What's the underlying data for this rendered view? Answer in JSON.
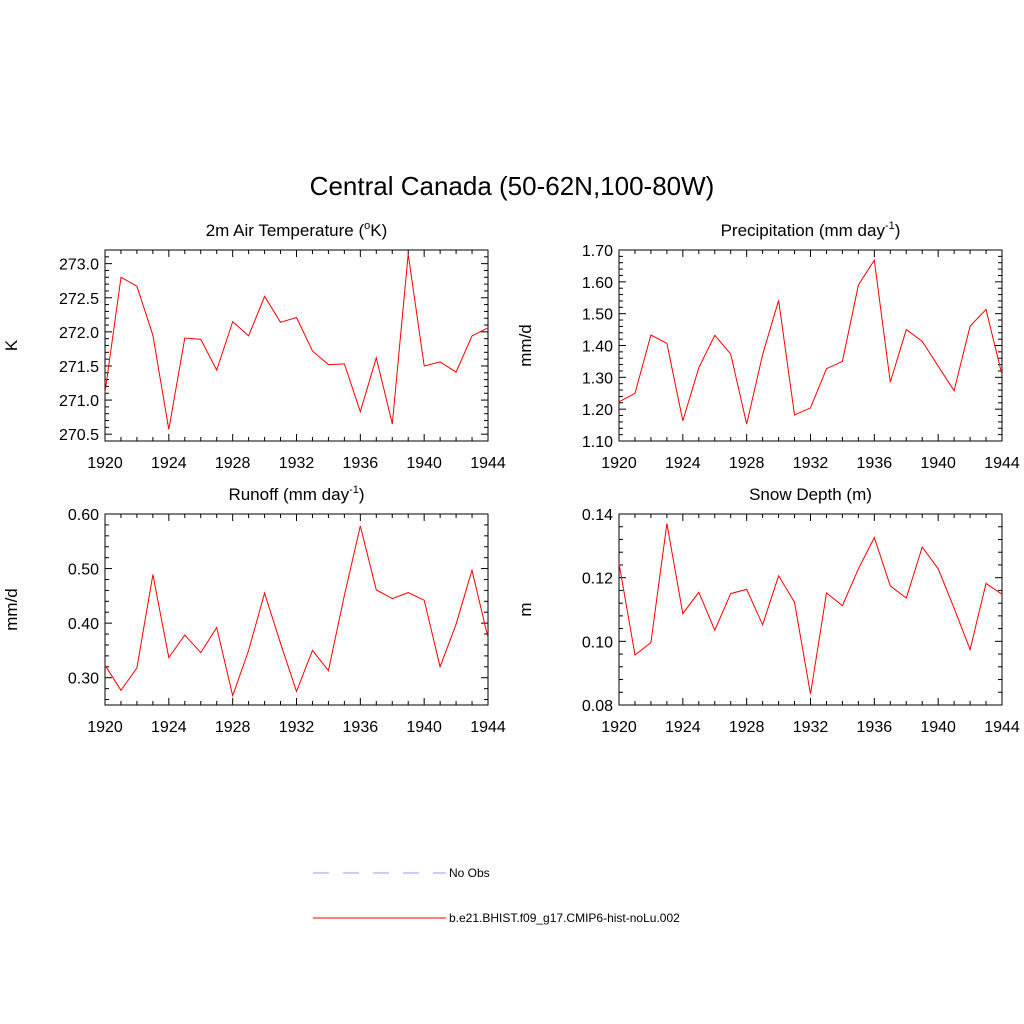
{
  "title": "Central Canada (50-62N,100-80W)",
  "colors": {
    "model": "#ff0000",
    "obs": "#9999ff",
    "frame": "#000000"
  },
  "legend": {
    "items": [
      {
        "label": "No Obs",
        "style": "dashed",
        "color": "#9999ff"
      },
      {
        "label": "b.e21.BHIST.f09_g17.CMIP6-hist-noLu.002",
        "style": "solid",
        "color": "#ff0000"
      }
    ]
  },
  "chart_data": [
    {
      "type": "line",
      "title": {
        "pre": "2m Air Temperature (",
        "sup": "o",
        "post": "K)"
      },
      "ylabel": "K",
      "xlim": [
        1920,
        1944
      ],
      "ylim": [
        270.4,
        273.2
      ],
      "xticks": [
        1920,
        1924,
        1928,
        1932,
        1936,
        1940,
        1944
      ],
      "yticks": [
        270.5,
        271.0,
        271.5,
        272.0,
        272.5,
        273.0
      ],
      "ytick_labels": [
        "270.5",
        "271.0",
        "271.5",
        "272.0",
        "272.5",
        "273.0"
      ],
      "x": [
        1920,
        1921,
        1922,
        1923,
        1924,
        1925,
        1926,
        1927,
        1928,
        1929,
        1930,
        1931,
        1932,
        1933,
        1934,
        1935,
        1936,
        1937,
        1938,
        1939,
        1940,
        1941,
        1942,
        1943,
        1944
      ],
      "series": [
        {
          "values": [
            271.11,
            272.8,
            272.67,
            271.95,
            270.57,
            271.91,
            271.89,
            271.44,
            272.15,
            271.94,
            272.52,
            272.14,
            272.21,
            271.72,
            271.52,
            271.53,
            270.83,
            271.62,
            270.65,
            273.14,
            271.5,
            271.56,
            271.41,
            271.94,
            272.06
          ]
        }
      ]
    },
    {
      "type": "line",
      "title": {
        "pre": "Precipitation (mm day",
        "sup": "-1",
        "post": ")"
      },
      "ylabel": "mm/d",
      "xlim": [
        1920,
        1944
      ],
      "ylim": [
        1.1,
        1.7
      ],
      "xticks": [
        1920,
        1924,
        1928,
        1932,
        1936,
        1940,
        1944
      ],
      "yticks": [
        1.1,
        1.2,
        1.3,
        1.4,
        1.5,
        1.6,
        1.7
      ],
      "ytick_labels": [
        "1.10",
        "1.20",
        "1.30",
        "1.40",
        "1.50",
        "1.60",
        "1.70"
      ],
      "x": [
        1920,
        1921,
        1922,
        1923,
        1924,
        1925,
        1926,
        1927,
        1928,
        1929,
        1930,
        1931,
        1932,
        1933,
        1934,
        1935,
        1936,
        1937,
        1938,
        1939,
        1940,
        1941,
        1942,
        1943,
        1944
      ],
      "series": [
        {
          "values": [
            1.223,
            1.25,
            1.433,
            1.407,
            1.163,
            1.33,
            1.432,
            1.373,
            1.153,
            1.371,
            1.542,
            1.182,
            1.204,
            1.327,
            1.35,
            1.59,
            1.668,
            1.285,
            1.45,
            1.413,
            1.335,
            1.258,
            1.461,
            1.513,
            1.308
          ]
        }
      ]
    },
    {
      "type": "line",
      "title": {
        "pre": "Runoff (mm day",
        "sup": "-1",
        "post": ")"
      },
      "ylabel": "mm/d",
      "xlim": [
        1920,
        1944
      ],
      "ylim": [
        0.25,
        0.6
      ],
      "xticks": [
        1920,
        1924,
        1928,
        1932,
        1936,
        1940,
        1944
      ],
      "yticks": [
        0.3,
        0.4,
        0.5,
        0.6
      ],
      "ytick_labels": [
        "0.30",
        "0.40",
        "0.50",
        "0.60"
      ],
      "x": [
        1920,
        1921,
        1922,
        1923,
        1924,
        1925,
        1926,
        1927,
        1928,
        1929,
        1930,
        1931,
        1932,
        1933,
        1934,
        1935,
        1936,
        1937,
        1938,
        1939,
        1940,
        1941,
        1942,
        1943,
        1944
      ],
      "series": [
        {
          "values": [
            0.323,
            0.277,
            0.318,
            0.489,
            0.337,
            0.378,
            0.346,
            0.392,
            0.267,
            0.35,
            0.455,
            0.363,
            0.275,
            0.35,
            0.313,
            0.451,
            0.578,
            0.461,
            0.445,
            0.456,
            0.442,
            0.32,
            0.398,
            0.497,
            0.373
          ]
        }
      ]
    },
    {
      "type": "line",
      "title": {
        "pre": "Snow Depth (m)",
        "sup": "",
        "post": ""
      },
      "ylabel": "m",
      "xlim": [
        1920,
        1944
      ],
      "ylim": [
        0.08,
        0.14
      ],
      "xticks": [
        1920,
        1924,
        1928,
        1932,
        1936,
        1940,
        1944
      ],
      "yticks": [
        0.08,
        0.1,
        0.12,
        0.14
      ],
      "ytick_labels": [
        "0.08",
        "0.10",
        "0.12",
        "0.14"
      ],
      "x": [
        1920,
        1921,
        1922,
        1923,
        1924,
        1925,
        1926,
        1927,
        1928,
        1929,
        1930,
        1931,
        1932,
        1933,
        1934,
        1935,
        1936,
        1937,
        1938,
        1939,
        1940,
        1941,
        1942,
        1943,
        1944
      ],
      "series": [
        {
          "values": [
            0.1245,
            0.0957,
            0.0996,
            0.137,
            0.1087,
            0.1154,
            0.1035,
            0.115,
            0.1163,
            0.1052,
            0.1206,
            0.1123,
            0.0834,
            0.1152,
            0.1112,
            0.1228,
            0.1326,
            0.1174,
            0.1136,
            0.1296,
            0.1228,
            0.1104,
            0.0974,
            0.1182,
            0.1148
          ]
        }
      ]
    }
  ]
}
